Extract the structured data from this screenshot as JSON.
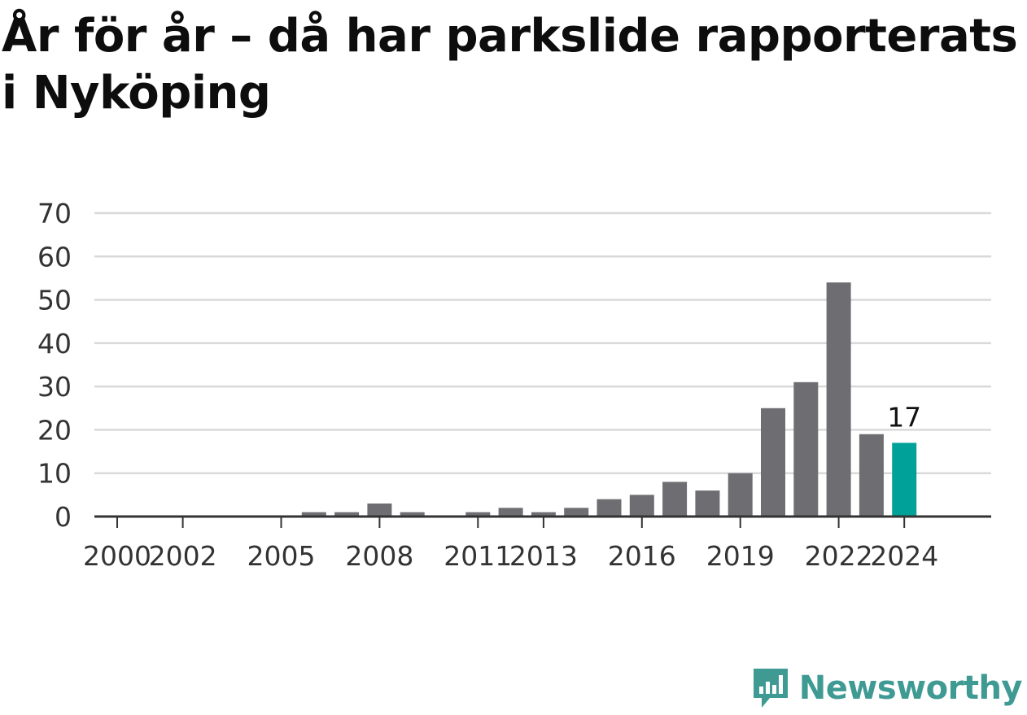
{
  "title": "År för år – då har parkslide rapporterats i Nyköping",
  "brand": {
    "name": "Newsworthy",
    "icon": "newsworthy-logo-icon",
    "color": "#3f9a93"
  },
  "colors": {
    "bar": "#6e6d72",
    "highlight": "#00a199",
    "grid": "#d9d9d9",
    "axis": "#333333",
    "label": "#333333"
  },
  "chart_data": {
    "type": "bar",
    "x": [
      2000,
      2001,
      2002,
      2003,
      2004,
      2005,
      2006,
      2007,
      2008,
      2009,
      2010,
      2011,
      2012,
      2013,
      2014,
      2015,
      2016,
      2017,
      2018,
      2019,
      2020,
      2021,
      2022,
      2023,
      2024
    ],
    "values": [
      0,
      0,
      0,
      0,
      0,
      0,
      1,
      1,
      3,
      1,
      0,
      1,
      2,
      1,
      2,
      4,
      5,
      8,
      6,
      10,
      25,
      31,
      54,
      19,
      17
    ],
    "x_tick_labels": [
      "2000",
      "2002",
      "2005",
      "2008",
      "2011",
      "2013",
      "2016",
      "2019",
      "2022",
      "2024"
    ],
    "y_ticks": [
      0,
      10,
      20,
      30,
      40,
      50,
      60,
      70
    ],
    "ylim": [
      0,
      70
    ],
    "highlight": {
      "x": 2024,
      "label": "17"
    },
    "grid": true,
    "legend": "none"
  }
}
